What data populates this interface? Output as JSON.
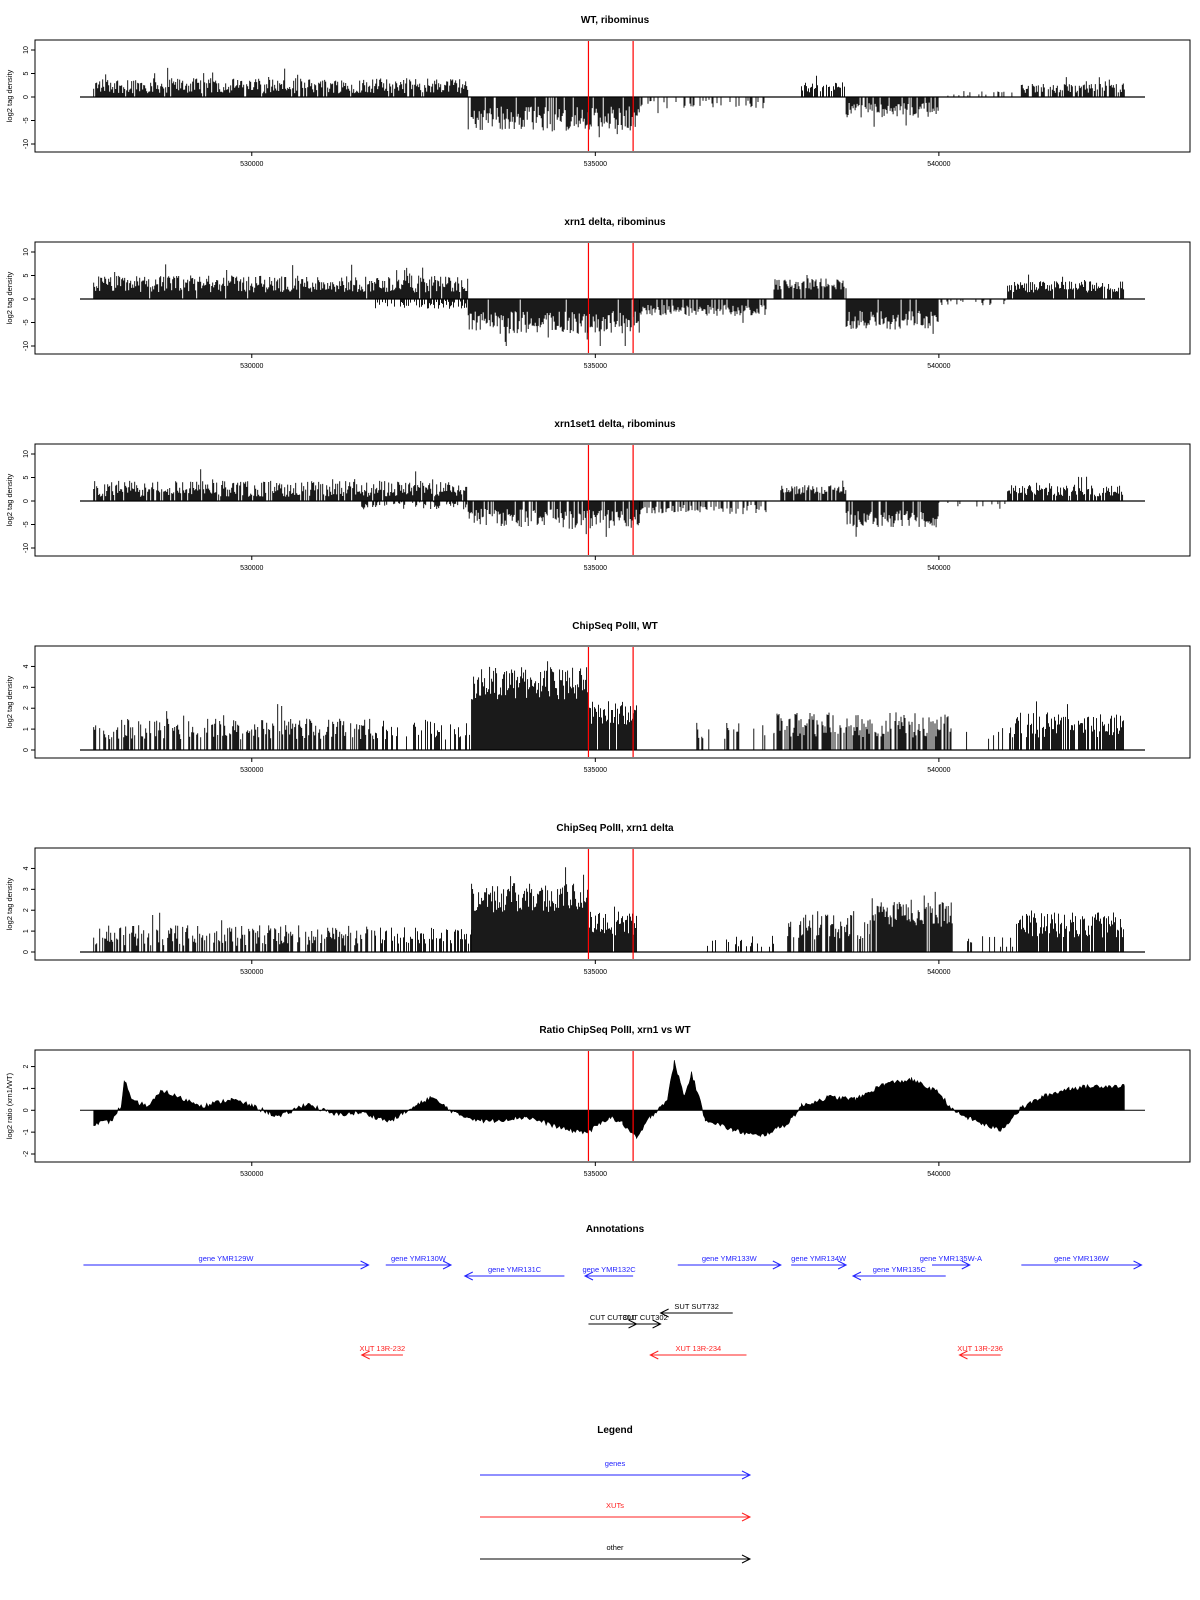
{
  "colors": {
    "genes": "#2222ff",
    "xuts": "#ff2020",
    "other": "#000000",
    "marker": "#ff0000",
    "bars": "#000000"
  },
  "chart_data": [
    {
      "type": "bar",
      "title": "WT, ribominus",
      "ylabel": "log2 tag density",
      "ylim": [
        -10,
        10
      ],
      "yticks": [
        -10,
        -5,
        0,
        5,
        10
      ],
      "xlim": [
        527500,
        543000
      ],
      "xticks": [
        530000,
        535000,
        540000
      ],
      "markers": [
        534900,
        535550
      ],
      "segments": [
        {
          "from": 527700,
          "to": 533150,
          "sign": 1,
          "level": 2.4,
          "spread": 1.6,
          "fill": 0.92
        },
        {
          "from": 533150,
          "to": 535650,
          "sign": -1,
          "level": 4.6,
          "spread": 2.6,
          "fill": 0.92
        },
        {
          "from": 535650,
          "to": 537500,
          "sign": -1,
          "level": 1.5,
          "spread": 0.9,
          "fill": 0.22
        },
        {
          "from": 538000,
          "to": 538650,
          "sign": 1,
          "level": 2.2,
          "spread": 1.2,
          "fill": 0.8
        },
        {
          "from": 538650,
          "to": 540000,
          "sign": -1,
          "level": 2.8,
          "spread": 1.6,
          "fill": 0.85
        },
        {
          "from": 540000,
          "to": 541200,
          "sign": 1,
          "level": 0.8,
          "spread": 0.5,
          "fill": 0.15
        },
        {
          "from": 541200,
          "to": 542700,
          "sign": 1,
          "level": 1.8,
          "spread": 1.0,
          "fill": 0.75
        }
      ]
    },
    {
      "type": "bar",
      "title": "xrn1 delta, ribominus",
      "ylabel": "log2 tag density",
      "ylim": [
        -10,
        10
      ],
      "yticks": [
        -10,
        -5,
        0,
        5,
        10
      ],
      "xlim": [
        527500,
        543000
      ],
      "xticks": [
        530000,
        535000,
        540000
      ],
      "markers": [
        534900,
        535550
      ],
      "segments": [
        {
          "from": 527700,
          "to": 533150,
          "sign": 1,
          "level": 3.2,
          "spread": 1.8,
          "fill": 0.97
        },
        {
          "from": 531800,
          "to": 533150,
          "sign": -1,
          "level": 1.2,
          "spread": 0.9,
          "fill": 0.5
        },
        {
          "from": 533150,
          "to": 535650,
          "sign": -1,
          "level": 5.0,
          "spread": 2.4,
          "fill": 0.97
        },
        {
          "from": 535650,
          "to": 537500,
          "sign": -1,
          "level": 2.4,
          "spread": 1.2,
          "fill": 0.85
        },
        {
          "from": 537600,
          "to": 538650,
          "sign": 1,
          "level": 3.2,
          "spread": 1.2,
          "fill": 0.9
        },
        {
          "from": 538650,
          "to": 540000,
          "sign": -1,
          "level": 4.5,
          "spread": 2.0,
          "fill": 0.95
        },
        {
          "from": 540000,
          "to": 541000,
          "sign": -1,
          "level": 0.8,
          "spread": 0.6,
          "fill": 0.2
        },
        {
          "from": 541000,
          "to": 542700,
          "sign": 1,
          "level": 2.6,
          "spread": 1.2,
          "fill": 0.95
        }
      ]
    },
    {
      "type": "bar",
      "title": "xrn1set1 delta, ribominus",
      "ylabel": "log2 tag density",
      "ylim": [
        -10,
        10
      ],
      "yticks": [
        -10,
        -5,
        0,
        5,
        10
      ],
      "xlim": [
        527500,
        543000
      ],
      "xticks": [
        530000,
        535000,
        540000
      ],
      "markers": [
        534900,
        535550
      ],
      "segments": [
        {
          "from": 527700,
          "to": 533150,
          "sign": 1,
          "level": 2.6,
          "spread": 1.7,
          "fill": 0.9
        },
        {
          "from": 531600,
          "to": 533150,
          "sign": -1,
          "level": 1.0,
          "spread": 0.8,
          "fill": 0.4
        },
        {
          "from": 533150,
          "to": 535650,
          "sign": -1,
          "level": 3.8,
          "spread": 2.2,
          "fill": 0.85
        },
        {
          "from": 535650,
          "to": 537500,
          "sign": -1,
          "level": 1.8,
          "spread": 1.0,
          "fill": 0.6
        },
        {
          "from": 537700,
          "to": 538650,
          "sign": 1,
          "level": 2.4,
          "spread": 1.0,
          "fill": 0.85
        },
        {
          "from": 538650,
          "to": 540000,
          "sign": -1,
          "level": 3.8,
          "spread": 1.8,
          "fill": 0.9
        },
        {
          "from": 540000,
          "to": 541000,
          "sign": -1,
          "level": 0.8,
          "spread": 0.5,
          "fill": 0.2
        },
        {
          "from": 541000,
          "to": 542700,
          "sign": 1,
          "level": 2.2,
          "spread": 1.2,
          "fill": 0.85
        }
      ]
    },
    {
      "type": "bar",
      "title": "ChipSeq PolII, WT",
      "ylabel": "log2 tag density",
      "ylim": [
        0,
        4.5
      ],
      "yticks": [
        0,
        1,
        2,
        3,
        4
      ],
      "xlim": [
        527500,
        543000
      ],
      "xticks": [
        530000,
        535000,
        540000
      ],
      "markers": [
        534900,
        535550
      ],
      "segments": [
        {
          "from": 527700,
          "to": 531800,
          "sign": 1,
          "level": 1.0,
          "spread": 0.5,
          "fill": 0.6
        },
        {
          "from": 531800,
          "to": 533200,
          "sign": 1,
          "level": 1.0,
          "spread": 0.5,
          "fill": 0.45
        },
        {
          "from": 533200,
          "to": 534900,
          "sign": 1,
          "level": 3.2,
          "spread": 0.8,
          "fill": 1.0
        },
        {
          "from": 534900,
          "to": 535600,
          "sign": 1,
          "level": 1.8,
          "spread": 0.6,
          "fill": 0.95
        },
        {
          "from": 535600,
          "to": 536200,
          "sign": 1,
          "level": 0.0,
          "spread": 0.0,
          "fill": 0.0
        },
        {
          "from": 536200,
          "to": 537600,
          "sign": 1,
          "level": 0.9,
          "spread": 0.4,
          "fill": 0.25
        },
        {
          "from": 537600,
          "to": 540200,
          "sign": 1,
          "level": 1.2,
          "spread": 0.6,
          "fill": 0.65
        },
        {
          "from": 540200,
          "to": 541100,
          "sign": 1,
          "level": 0.8,
          "spread": 0.3,
          "fill": 0.2
        },
        {
          "from": 541100,
          "to": 542700,
          "sign": 1,
          "level": 1.2,
          "spread": 0.6,
          "fill": 0.75
        }
      ]
    },
    {
      "type": "bar",
      "title": "ChipSeq PolII, xrn1 delta",
      "ylabel": "log2 tag density",
      "ylim": [
        0,
        4.5
      ],
      "yticks": [
        0,
        1,
        2,
        3,
        4
      ],
      "xlim": [
        527500,
        543000
      ],
      "xticks": [
        530000,
        535000,
        540000
      ],
      "markers": [
        534900,
        535550
      ],
      "segments": [
        {
          "from": 527700,
          "to": 531800,
          "sign": 1,
          "level": 0.8,
          "spread": 0.5,
          "fill": 0.6
        },
        {
          "from": 531800,
          "to": 533200,
          "sign": 1,
          "level": 0.8,
          "spread": 0.4,
          "fill": 0.45
        },
        {
          "from": 533200,
          "to": 534900,
          "sign": 1,
          "level": 2.6,
          "spread": 0.7,
          "fill": 1.0
        },
        {
          "from": 534900,
          "to": 535600,
          "sign": 1,
          "level": 1.4,
          "spread": 0.6,
          "fill": 0.95
        },
        {
          "from": 535600,
          "to": 536400,
          "sign": 1,
          "level": 0.0,
          "spread": 0.0,
          "fill": 0.0
        },
        {
          "from": 536400,
          "to": 537600,
          "sign": 1,
          "level": 0.5,
          "spread": 0.3,
          "fill": 0.18
        },
        {
          "from": 537800,
          "to": 539000,
          "sign": 1,
          "level": 1.2,
          "spread": 0.6,
          "fill": 0.7
        },
        {
          "from": 539000,
          "to": 540200,
          "sign": 1,
          "level": 1.8,
          "spread": 0.6,
          "fill": 0.95
        },
        {
          "from": 540200,
          "to": 541100,
          "sign": 1,
          "level": 0.5,
          "spread": 0.3,
          "fill": 0.15
        },
        {
          "from": 541100,
          "to": 542700,
          "sign": 1,
          "level": 1.3,
          "spread": 0.6,
          "fill": 0.85
        }
      ]
    },
    {
      "type": "area",
      "title": "Ratio ChipSeq PolII, xrn1 vs WT",
      "ylabel": "log2 ratio (xrn1/WT)",
      "ylim": [
        -2,
        2.3
      ],
      "yticks": [
        -2,
        -1,
        0,
        1,
        2
      ],
      "xlim": [
        527500,
        543000
      ],
      "xticks": [
        530000,
        535000,
        540000
      ],
      "markers": [
        534900,
        535550
      ],
      "profile": [
        [
          527700,
          -0.6
        ],
        [
          527950,
          -0.5
        ],
        [
          528100,
          0.2
        ],
        [
          528150,
          1.4
        ],
        [
          528250,
          0.4
        ],
        [
          528500,
          0.2
        ],
        [
          528700,
          0.9
        ],
        [
          529000,
          0.5
        ],
        [
          529300,
          0.2
        ],
        [
          529700,
          0.5
        ],
        [
          530000,
          0.2
        ],
        [
          530400,
          -0.3
        ],
        [
          530800,
          0.3
        ],
        [
          531200,
          -0.2
        ],
        [
          531600,
          -0.1
        ],
        [
          532000,
          -0.5
        ],
        [
          532400,
          0.2
        ],
        [
          532600,
          0.6
        ],
        [
          533000,
          -0.2
        ],
        [
          533400,
          -0.5
        ],
        [
          534000,
          -0.3
        ],
        [
          534600,
          -0.9
        ],
        [
          534900,
          -1.0
        ],
        [
          535200,
          -0.3
        ],
        [
          535400,
          -0.6
        ],
        [
          535600,
          -1.3
        ],
        [
          535800,
          -0.3
        ],
        [
          536050,
          0.5
        ],
        [
          536150,
          2.2
        ],
        [
          536300,
          0.6
        ],
        [
          536400,
          1.7
        ],
        [
          536600,
          -0.4
        ],
        [
          537000,
          -0.9
        ],
        [
          537400,
          -1.2
        ],
        [
          537800,
          -0.6
        ],
        [
          538000,
          0.2
        ],
        [
          538400,
          0.6
        ],
        [
          538800,
          0.5
        ],
        [
          539200,
          1.2
        ],
        [
          539600,
          1.4
        ],
        [
          540000,
          0.8
        ],
        [
          540200,
          0.0
        ],
        [
          540400,
          -0.3
        ],
        [
          540700,
          -0.7
        ],
        [
          540900,
          -0.9
        ],
        [
          541200,
          0.1
        ],
        [
          541500,
          0.6
        ],
        [
          541900,
          1.0
        ],
        [
          542300,
          1.1
        ],
        [
          542700,
          1.1
        ]
      ]
    }
  ],
  "annotations": {
    "title": "Annotations",
    "xlim": [
      527500,
      543000
    ],
    "features": [
      {
        "label": "gene YMR129W",
        "kind": "genes",
        "from": 527550,
        "to": 531700,
        "dir": "right",
        "row": 0
      },
      {
        "label": "gene YMR130W",
        "kind": "genes",
        "from": 531950,
        "to": 532900,
        "dir": "right",
        "row": 0
      },
      {
        "label": "gene YMR131C",
        "kind": "genes",
        "from": 533100,
        "to": 534550,
        "dir": "left",
        "row": 1
      },
      {
        "label": "gene YMR132C",
        "kind": "genes",
        "from": 534850,
        "to": 535550,
        "dir": "left",
        "row": 1
      },
      {
        "label": "gene YMR133W",
        "kind": "genes",
        "from": 536200,
        "to": 537700,
        "dir": "right",
        "row": 0
      },
      {
        "label": "gene YMR134W",
        "kind": "genes",
        "from": 537850,
        "to": 538650,
        "dir": "right",
        "row": 0
      },
      {
        "label": "gene YMR135C",
        "kind": "genes",
        "from": 538750,
        "to": 540100,
        "dir": "left",
        "row": 1
      },
      {
        "label": "gene YMR135W-A",
        "kind": "genes",
        "from": 539900,
        "to": 540450,
        "dir": "right",
        "row": 0
      },
      {
        "label": "gene YMR136W",
        "kind": "genes",
        "from": 541200,
        "to": 542950,
        "dir": "right",
        "row": 0
      },
      {
        "label": "SUT SUT732",
        "kind": "other",
        "from": 535950,
        "to": 537000,
        "dir": "left",
        "row": 3
      },
      {
        "label": "CUT CUT301",
        "kind": "other",
        "from": 534900,
        "to": 535600,
        "dir": "right",
        "row": 4
      },
      {
        "label": "CUT CUT302",
        "kind": "other",
        "from": 535500,
        "to": 535950,
        "dir": "right",
        "row": 4
      },
      {
        "label": "XUT 13R-232",
        "kind": "xuts",
        "from": 531600,
        "to": 532200,
        "dir": "left",
        "row": 5
      },
      {
        "label": "XUT 13R-234",
        "kind": "xuts",
        "from": 535800,
        "to": 537200,
        "dir": "left",
        "row": 5
      },
      {
        "label": "XUT 13R-236",
        "kind": "xuts",
        "from": 540300,
        "to": 540900,
        "dir": "left",
        "row": 5
      }
    ]
  },
  "legend": {
    "title": "Legend",
    "entries": [
      {
        "label": "genes",
        "kind": "genes"
      },
      {
        "label": "XUTs",
        "kind": "xuts"
      },
      {
        "label": "other",
        "kind": "other"
      }
    ]
  }
}
